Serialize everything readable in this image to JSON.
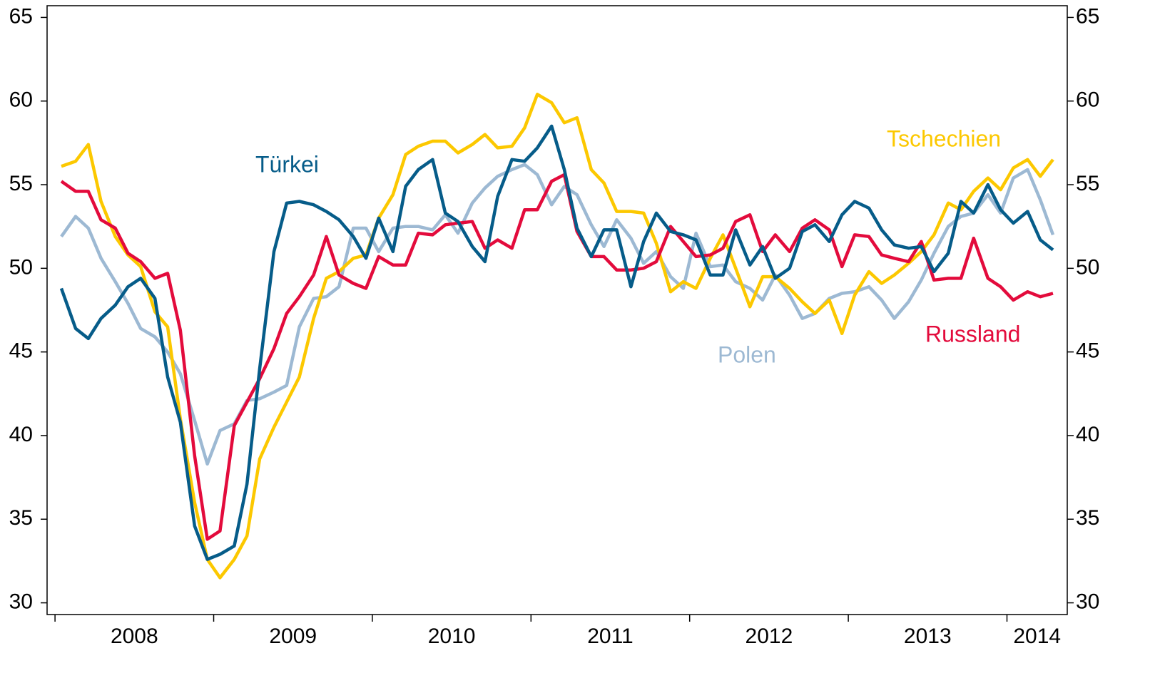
{
  "chart_data": {
    "type": "line",
    "x": [
      2008.04,
      2008.13,
      2008.21,
      2008.29,
      2008.38,
      2008.46,
      2008.54,
      2008.63,
      2008.71,
      2008.79,
      2008.88,
      2008.96,
      2009.04,
      2009.13,
      2009.21,
      2009.29,
      2009.38,
      2009.46,
      2009.54,
      2009.63,
      2009.71,
      2009.79,
      2009.88,
      2009.96,
      2010.04,
      2010.13,
      2010.21,
      2010.29,
      2010.38,
      2010.46,
      2010.54,
      2010.63,
      2010.71,
      2010.79,
      2010.88,
      2010.96,
      2011.04,
      2011.13,
      2011.21,
      2011.29,
      2011.38,
      2011.46,
      2011.54,
      2011.63,
      2011.71,
      2011.79,
      2011.88,
      2011.96,
      2012.04,
      2012.13,
      2012.21,
      2012.29,
      2012.38,
      2012.46,
      2012.54,
      2012.63,
      2012.71,
      2012.79,
      2012.88,
      2012.96,
      2013.04,
      2013.13,
      2013.21,
      2013.29,
      2013.38,
      2013.46,
      2013.54,
      2013.63,
      2013.71,
      2013.79,
      2013.88,
      2013.96,
      2014.04,
      2014.13,
      2014.21,
      2014.29
    ],
    "series": [
      {
        "name": "Polen",
        "color": "#9db9d3",
        "values": [
          51.9,
          53.1,
          52.4,
          50.6,
          49.2,
          47.9,
          46.4,
          45.9,
          45.0,
          43.7,
          40.9,
          38.3,
          40.3,
          40.7,
          42.1,
          42.2,
          42.6,
          43.0,
          46.5,
          48.2,
          48.3,
          48.9,
          52.4,
          52.4,
          51.0,
          52.4,
          52.5,
          52.5,
          52.3,
          53.2,
          52.1,
          53.9,
          54.8,
          55.5,
          55.9,
          56.2,
          55.6,
          53.8,
          54.9,
          54.4,
          52.6,
          51.3,
          52.9,
          51.8,
          50.3,
          51.0,
          49.5,
          48.8,
          52.1,
          50.1,
          50.2,
          49.2,
          48.8,
          48.1,
          49.6,
          48.4,
          47.0,
          47.3,
          48.2,
          48.5,
          48.6,
          48.9,
          48.1,
          47.0,
          48.0,
          49.3,
          50.9,
          52.5,
          53.1,
          53.3,
          54.4,
          53.3,
          55.4,
          55.9,
          54.1,
          52.0
        ]
      },
      {
        "name": "Tschechien",
        "color": "#fcc800",
        "values": [
          56.1,
          56.4,
          57.4,
          54.0,
          51.9,
          50.8,
          50.1,
          47.4,
          46.5,
          41.0,
          36.0,
          32.6,
          31.5,
          32.6,
          34.0,
          38.6,
          40.5,
          42.0,
          43.5,
          47.0,
          49.4,
          49.8,
          50.6,
          50.8,
          53.0,
          54.4,
          56.8,
          57.3,
          57.6,
          57.6,
          56.9,
          57.4,
          58.0,
          57.2,
          57.3,
          58.4,
          60.4,
          59.9,
          58.7,
          59.0,
          55.9,
          55.1,
          53.4,
          53.4,
          53.3,
          51.5,
          48.6,
          49.2,
          48.8,
          50.6,
          52.0,
          50.0,
          47.7,
          49.5,
          49.5,
          48.8,
          48.0,
          47.3,
          48.1,
          46.1,
          48.4,
          49.8,
          49.1,
          49.6,
          50.3,
          51.0,
          52.0,
          53.9,
          53.5,
          54.6,
          55.4,
          54.7,
          56.0,
          56.5,
          55.5,
          56.5
        ]
      },
      {
        "name": "Russland",
        "color": "#e30b3c",
        "values": [
          55.2,
          54.6,
          54.6,
          52.9,
          52.4,
          50.9,
          50.4,
          49.4,
          49.7,
          46.3,
          38.8,
          33.8,
          34.3,
          40.6,
          42.0,
          43.4,
          45.2,
          47.3,
          48.3,
          49.6,
          51.9,
          49.6,
          49.1,
          48.8,
          50.7,
          50.2,
          50.2,
          52.1,
          52.0,
          52.6,
          52.7,
          52.8,
          51.2,
          51.7,
          51.2,
          53.5,
          53.5,
          55.2,
          55.6,
          52.2,
          50.7,
          50.7,
          49.9,
          49.9,
          50.0,
          50.4,
          52.5,
          51.6,
          50.7,
          50.8,
          51.2,
          52.8,
          53.2,
          51.0,
          52.0,
          51.0,
          52.4,
          52.9,
          52.3,
          50.1,
          52.0,
          51.9,
          50.8,
          50.6,
          50.4,
          51.6,
          49.3,
          49.4,
          49.4,
          51.8,
          49.4,
          48.9,
          48.1,
          48.6,
          48.3,
          48.5
        ]
      },
      {
        "name": "Türkei",
        "color": "#065c89",
        "values": [
          48.8,
          46.4,
          45.8,
          47.0,
          47.8,
          48.9,
          49.4,
          48.2,
          43.5,
          40.8,
          34.6,
          32.6,
          32.9,
          33.4,
          37.1,
          44.0,
          51.0,
          53.9,
          54.0,
          53.8,
          53.4,
          52.9,
          51.9,
          50.6,
          53.0,
          51.0,
          54.9,
          55.9,
          56.5,
          53.3,
          52.8,
          51.3,
          50.4,
          54.3,
          56.5,
          56.4,
          57.2,
          58.5,
          55.9,
          52.4,
          50.7,
          52.3,
          52.3,
          48.9,
          51.6,
          53.3,
          52.2,
          52.0,
          51.7,
          49.6,
          49.6,
          52.3,
          50.2,
          51.3,
          49.4,
          50.0,
          52.2,
          52.6,
          51.6,
          53.2,
          54.0,
          53.6,
          52.3,
          51.4,
          51.2,
          51.3,
          49.8,
          50.9,
          54.0,
          53.3,
          55.0,
          53.5,
          52.7,
          53.4,
          51.7,
          51.1
        ]
      }
    ],
    "xlim": [
      2007.95,
      2014.38
    ],
    "xticks": [
      2008,
      2009,
      2010,
      2011,
      2012,
      2013,
      2014
    ],
    "ylim": [
      29.3,
      65.7
    ],
    "yticks": [
      30,
      35,
      40,
      45,
      50,
      55,
      60,
      65
    ]
  }
}
